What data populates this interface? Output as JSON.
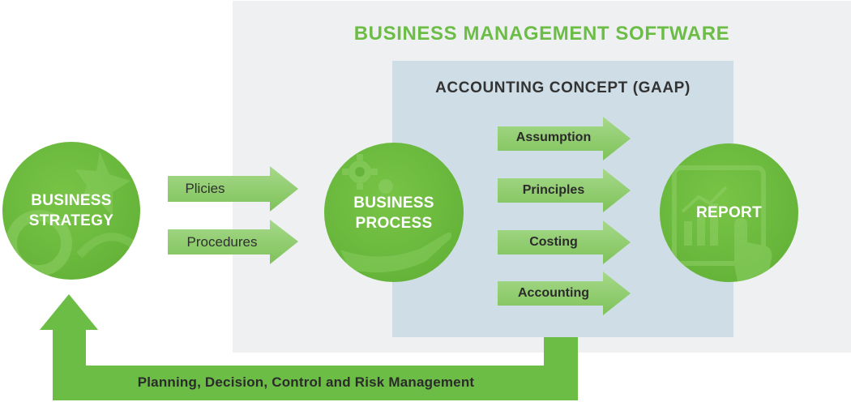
{
  "bms_title": "BUSINESS MANAGEMENT SOFTWARE",
  "gaap_title": "ACCOUNTING CONCEPT (GAAP)",
  "circles": {
    "strategy": [
      "BUSINESS",
      "STRATEGY"
    ],
    "process": [
      "BUSINESS",
      "PROCESS"
    ],
    "report": [
      "REPORT"
    ]
  },
  "inputs": [
    "Plicies",
    "Procedures"
  ],
  "gaap_items": [
    "Assumption",
    "Principles",
    "Costing",
    "Accounting"
  ],
  "feedback_label": "Planning, Decision, Control and Risk Management",
  "colors": {
    "green": "#6cbd45",
    "dark_green": "#5ea934",
    "gray_panel": "#eef0f1",
    "blue_panel": "#cfdee6"
  },
  "icons": [
    "gear-hand-icon",
    "chart-hand-icon",
    "strategy-emblem-icon"
  ]
}
